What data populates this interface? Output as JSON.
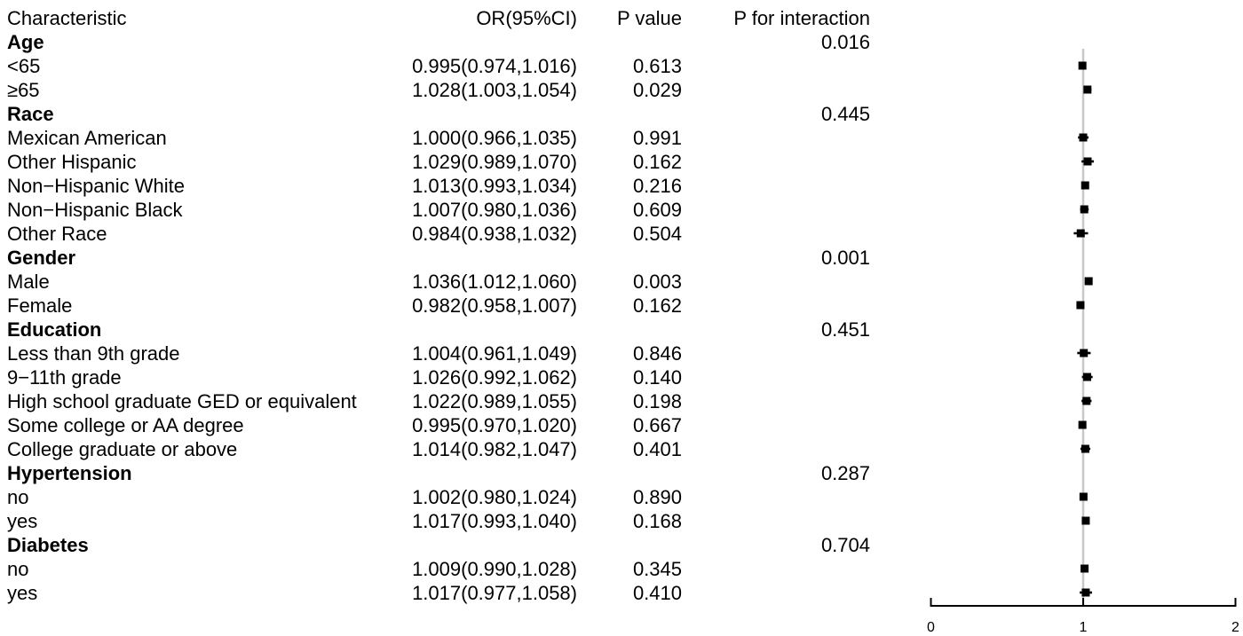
{
  "page": {
    "background": "#ffffff",
    "text_color": "#000000"
  },
  "table": {
    "columns": {
      "characteristic": "Characteristic",
      "or_ci": "OR(95%CI)",
      "p_value": "P value",
      "p_interaction": "P for interaction"
    }
  },
  "chart_data": {
    "type": "scatter",
    "subtype": "forest-plot",
    "title": "",
    "xlabel": "",
    "ylabel": "",
    "axis": {
      "min": 0,
      "max": 2,
      "ticks": [
        "0",
        "1",
        "2"
      ],
      "reference_line": 1
    },
    "legend": "none",
    "grid": false,
    "colors": {
      "marker": "#000000",
      "ci_line": "#000000",
      "reference_line": "#c8c8c8",
      "axis": "#000000",
      "tick_text": "#000000"
    },
    "rows": [
      {
        "label": "Age",
        "group": true,
        "p_interaction": "0.016"
      },
      {
        "label": "<65",
        "or_ci": "0.995(0.974,1.016)",
        "p": "0.613",
        "or": 0.995,
        "ci_low": 0.974,
        "ci_high": 1.016
      },
      {
        "label": "≥65",
        "or_ci": "1.028(1.003,1.054)",
        "p": "0.029",
        "or": 1.028,
        "ci_low": 1.003,
        "ci_high": 1.054
      },
      {
        "label": "Race",
        "group": true,
        "p_interaction": "0.445"
      },
      {
        "label": "Mexican American",
        "or_ci": "1.000(0.966,1.035)",
        "p": "0.991",
        "or": 1.0,
        "ci_low": 0.966,
        "ci_high": 1.035
      },
      {
        "label": "Other Hispanic",
        "or_ci": "1.029(0.989,1.070)",
        "p": "0.162",
        "or": 1.029,
        "ci_low": 0.989,
        "ci_high": 1.07
      },
      {
        "label": "Non−Hispanic White",
        "or_ci": "1.013(0.993,1.034)",
        "p": "0.216",
        "or": 1.013,
        "ci_low": 0.993,
        "ci_high": 1.034
      },
      {
        "label": "Non−Hispanic Black",
        "or_ci": "1.007(0.980,1.036)",
        "p": "0.609",
        "or": 1.007,
        "ci_low": 0.98,
        "ci_high": 1.036
      },
      {
        "label": "Other Race",
        "or_ci": "0.984(0.938,1.032)",
        "p": "0.504",
        "or": 0.984,
        "ci_low": 0.938,
        "ci_high": 1.032
      },
      {
        "label": "Gender",
        "group": true,
        "p_interaction": "0.001"
      },
      {
        "label": "Male",
        "or_ci": "1.036(1.012,1.060)",
        "p": "0.003",
        "or": 1.036,
        "ci_low": 1.012,
        "ci_high": 1.06
      },
      {
        "label": "Female",
        "or_ci": "0.982(0.958,1.007)",
        "p": "0.162",
        "or": 0.982,
        "ci_low": 0.958,
        "ci_high": 1.007
      },
      {
        "label": "Education",
        "group": true,
        "p_interaction": "0.451"
      },
      {
        "label": "Less than 9th grade",
        "or_ci": "1.004(0.961,1.049)",
        "p": "0.846",
        "or": 1.004,
        "ci_low": 0.961,
        "ci_high": 1.049
      },
      {
        "label": "9−11th grade",
        "or_ci": "1.026(0.992,1.062)",
        "p": "0.140",
        "or": 1.026,
        "ci_low": 0.992,
        "ci_high": 1.062
      },
      {
        "label": "High school graduate GED or equivalent",
        "or_ci": "1.022(0.989,1.055)",
        "p": "0.198",
        "or": 1.022,
        "ci_low": 0.989,
        "ci_high": 1.055
      },
      {
        "label": "Some college or AA degree",
        "or_ci": "0.995(0.970,1.020)",
        "p": "0.667",
        "or": 0.995,
        "ci_low": 0.97,
        "ci_high": 1.02
      },
      {
        "label": "College graduate or above",
        "or_ci": "1.014(0.982,1.047)",
        "p": "0.401",
        "or": 1.014,
        "ci_low": 0.982,
        "ci_high": 1.047
      },
      {
        "label": "Hypertension",
        "group": true,
        "p_interaction": "0.287"
      },
      {
        "label": "no",
        "or_ci": "1.002(0.980,1.024)",
        "p": "0.890",
        "or": 1.002,
        "ci_low": 0.98,
        "ci_high": 1.024
      },
      {
        "label": "yes",
        "or_ci": "1.017(0.993,1.040)",
        "p": "0.168",
        "or": 1.017,
        "ci_low": 0.993,
        "ci_high": 1.04
      },
      {
        "label": "Diabetes",
        "group": true,
        "p_interaction": "0.704"
      },
      {
        "label": "no",
        "or_ci": "1.009(0.990,1.028)",
        "p": "0.345",
        "or": 1.009,
        "ci_low": 0.99,
        "ci_high": 1.028
      },
      {
        "label": "yes",
        "or_ci": "1.017(0.977,1.058)",
        "p": "0.410",
        "or": 1.017,
        "ci_low": 0.977,
        "ci_high": 1.058
      }
    ]
  }
}
